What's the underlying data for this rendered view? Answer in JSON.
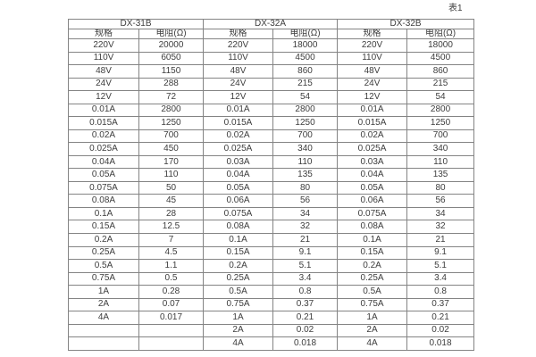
{
  "caption": "表1",
  "colors": {
    "background": "#ffffff",
    "border": "#848484",
    "text": "#3d3d3d"
  },
  "table": {
    "groups": [
      {
        "name": "DX-31B",
        "col_headers": [
          "规格",
          "电阻(Ω)"
        ],
        "rows": [
          [
            "220V",
            "20000"
          ],
          [
            "110V",
            "6050"
          ],
          [
            "48V",
            "1150"
          ],
          [
            "24V",
            "288"
          ],
          [
            "12V",
            "72"
          ],
          [
            "0.01A",
            "2800"
          ],
          [
            "0.015A",
            "1250"
          ],
          [
            "0.02A",
            "700"
          ],
          [
            "0.025A",
            "450"
          ],
          [
            "0.04A",
            "170"
          ],
          [
            "0.05A",
            "110"
          ],
          [
            "0.075A",
            "50"
          ],
          [
            "0.08A",
            "45"
          ],
          [
            "0.1A",
            "28"
          ],
          [
            "0.15A",
            "12.5"
          ],
          [
            "0.2A",
            "7"
          ],
          [
            "0.25A",
            "4.5"
          ],
          [
            "0.5A",
            "1.1"
          ],
          [
            "0.75A",
            "0.5"
          ],
          [
            "1A",
            "0.28"
          ],
          [
            "2A",
            "0.07"
          ],
          [
            "4A",
            "0.017"
          ],
          [
            "",
            ""
          ],
          [
            "",
            ""
          ]
        ]
      },
      {
        "name": "DX-32A",
        "col_headers": [
          "规格",
          "电阻(Ω)"
        ],
        "rows": [
          [
            "220V",
            "18000"
          ],
          [
            "110V",
            "4500"
          ],
          [
            "48V",
            "860"
          ],
          [
            "24V",
            "215"
          ],
          [
            "12V",
            "54"
          ],
          [
            "0.01A",
            "2800"
          ],
          [
            "0.015A",
            "1250"
          ],
          [
            "0.02A",
            "700"
          ],
          [
            "0.025A",
            "340"
          ],
          [
            "0.03A",
            "110"
          ],
          [
            "0.04A",
            "135"
          ],
          [
            "0.05A",
            "80"
          ],
          [
            "0.06A",
            "56"
          ],
          [
            "0.075A",
            "34"
          ],
          [
            "0.08A",
            "32"
          ],
          [
            "0.1A",
            "21"
          ],
          [
            "0.15A",
            "9.1"
          ],
          [
            "0.2A",
            "5.1"
          ],
          [
            "0.25A",
            "3.4"
          ],
          [
            "0.5A",
            "0.8"
          ],
          [
            "0.75A",
            "0.37"
          ],
          [
            "1A",
            "0.21"
          ],
          [
            "2A",
            "0.02"
          ],
          [
            "4A",
            "0.018"
          ]
        ]
      },
      {
        "name": "DX-32B",
        "col_headers": [
          "规格",
          "电阻(Ω)"
        ],
        "rows": [
          [
            "220V",
            "18000"
          ],
          [
            "110V",
            "4500"
          ],
          [
            "48V",
            "860"
          ],
          [
            "24V",
            "215"
          ],
          [
            "12V",
            "54"
          ],
          [
            "0.01A",
            "2800"
          ],
          [
            "0.015A",
            "1250"
          ],
          [
            "0.02A",
            "700"
          ],
          [
            "0.025A",
            "340"
          ],
          [
            "0.03A",
            "110"
          ],
          [
            "0.04A",
            "135"
          ],
          [
            "0.05A",
            "80"
          ],
          [
            "0.06A",
            "56"
          ],
          [
            "0.075A",
            "34"
          ],
          [
            "0.08A",
            "32"
          ],
          [
            "0.1A",
            "21"
          ],
          [
            "0.15A",
            "9.1"
          ],
          [
            "0.2A",
            "5.1"
          ],
          [
            "0.25A",
            "3.4"
          ],
          [
            "0.5A",
            "0.8"
          ],
          [
            "0.75A",
            "0.37"
          ],
          [
            "1A",
            "0.21"
          ],
          [
            "2A",
            "0.02"
          ],
          [
            "4A",
            "0.018"
          ]
        ]
      }
    ]
  }
}
